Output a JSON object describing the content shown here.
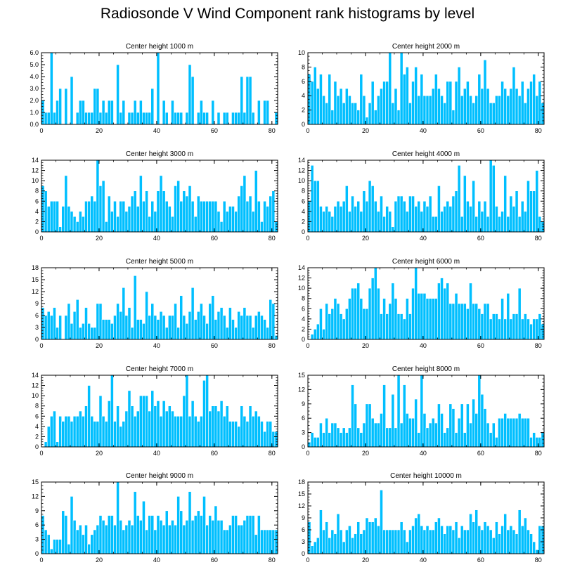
{
  "figure": {
    "title": "Radiosonde V Wind Component rank histograms by level",
    "bar_color": "#00bfff",
    "bar_edge_color": "#ffffff",
    "axis_color": "#000000"
  },
  "chart_data": [
    {
      "type": "bar",
      "title": "Center height 1000 m",
      "xlim": [
        0,
        82
      ],
      "ylim": [
        0,
        6
      ],
      "yticks": [
        0,
        1,
        2,
        3,
        4,
        5,
        6
      ],
      "ytick_labels": [
        "0.0",
        "1.0",
        "2.0",
        "3.0",
        "4.0",
        "5.0",
        "6.0"
      ],
      "xticks": [
        0,
        20,
        40,
        60,
        80
      ],
      "xtick_labels": [
        "0",
        "20",
        "40",
        "60",
        "80"
      ],
      "values": [
        2,
        1,
        1,
        6,
        1,
        2,
        3,
        0,
        3,
        0,
        4,
        0,
        1,
        2,
        2,
        1,
        1,
        1,
        3,
        3,
        1,
        2,
        1,
        2,
        2,
        0,
        5,
        1,
        2,
        0,
        1,
        1,
        2,
        1,
        2,
        1,
        1,
        1,
        3,
        0,
        6,
        0,
        2,
        1,
        0,
        2,
        1,
        1,
        1,
        0,
        1,
        5,
        4,
        0,
        1,
        2,
        1,
        1,
        0,
        2,
        0,
        1,
        0,
        1,
        1,
        0,
        1,
        1,
        1,
        4,
        1,
        4,
        4,
        1,
        0,
        2,
        0,
        2,
        2,
        0,
        0,
        1
      ]
    },
    {
      "type": "bar",
      "title": "Center height 2000 m",
      "xlim": [
        0,
        82
      ],
      "ylim": [
        0,
        10
      ],
      "yticks": [
        0,
        2,
        4,
        6,
        8,
        10
      ],
      "ytick_labels": [
        "0",
        "2",
        "4",
        "6",
        "8",
        "10"
      ],
      "xticks": [
        0,
        20,
        40,
        60,
        80
      ],
      "xtick_labels": [
        "0",
        "20",
        "40",
        "60",
        "80"
      ],
      "values": [
        7,
        6,
        8,
        5,
        7,
        4,
        3,
        7,
        2,
        6,
        4,
        5,
        3,
        5,
        4,
        3,
        3,
        2,
        7,
        4,
        1,
        3,
        6,
        2,
        4,
        5,
        6,
        6,
        10,
        3,
        5,
        2,
        10,
        7,
        8,
        3,
        6,
        8,
        4,
        7,
        4,
        4,
        4,
        5,
        7,
        5,
        4,
        3,
        6,
        6,
        2,
        6,
        8,
        4,
        5,
        6,
        4,
        3,
        4,
        7,
        5,
        9,
        5,
        3,
        3,
        4,
        4,
        6,
        5,
        4,
        5,
        8,
        5,
        4,
        6,
        3,
        5,
        6,
        7,
        4,
        6,
        3
      ]
    },
    {
      "type": "bar",
      "title": "Center height 3000 m",
      "xlim": [
        0,
        82
      ],
      "ylim": [
        0,
        14
      ],
      "yticks": [
        0,
        2,
        4,
        6,
        8,
        10,
        12,
        14
      ],
      "ytick_labels": [
        "0",
        "2",
        "4",
        "6",
        "8",
        "10",
        "12",
        "14"
      ],
      "xticks": [
        0,
        20,
        40,
        60,
        80
      ],
      "xtick_labels": [
        "0",
        "20",
        "40",
        "60",
        "80"
      ],
      "values": [
        9,
        8,
        5,
        6,
        6,
        6,
        1,
        5,
        11,
        5,
        4,
        3,
        2,
        4,
        3,
        6,
        6,
        7,
        6,
        14,
        9,
        10,
        2,
        7,
        4,
        6,
        3,
        6,
        6,
        4,
        5,
        7,
        8,
        5,
        11,
        6,
        8,
        3,
        6,
        4,
        8,
        11,
        8,
        6,
        5,
        3,
        9,
        10,
        6,
        8,
        7,
        9,
        6,
        3,
        7,
        6,
        6,
        6,
        6,
        6,
        6,
        4,
        2,
        6,
        4,
        5,
        5,
        4,
        7,
        9,
        11,
        6,
        7,
        4,
        12,
        6,
        2,
        6,
        5,
        7,
        8,
        2
      ]
    },
    {
      "type": "bar",
      "title": "Center height 4000 m",
      "xlim": [
        0,
        82
      ],
      "ylim": [
        0,
        14
      ],
      "yticks": [
        0,
        2,
        4,
        6,
        8,
        10,
        12,
        14
      ],
      "ytick_labels": [
        "0",
        "2",
        "4",
        "6",
        "8",
        "10",
        "12",
        "14"
      ],
      "xticks": [
        0,
        20,
        40,
        60,
        80
      ],
      "xtick_labels": [
        "0",
        "20",
        "40",
        "60",
        "80"
      ],
      "values": [
        6,
        13,
        10,
        10,
        5,
        4,
        5,
        4,
        3,
        5,
        6,
        5,
        6,
        9,
        4,
        7,
        5,
        6,
        4,
        8,
        6,
        10,
        9,
        6,
        4,
        7,
        3,
        5,
        4,
        1,
        6,
        7,
        7,
        6,
        4,
        7,
        7,
        5,
        6,
        4,
        6,
        5,
        7,
        3,
        3,
        9,
        4,
        5,
        6,
        5,
        7,
        8,
        13,
        3,
        11,
        6,
        5,
        10,
        3,
        6,
        4,
        6,
        3,
        14,
        13,
        5,
        3,
        4,
        11,
        3,
        7,
        5,
        8,
        3,
        6,
        4,
        10,
        8,
        8,
        12,
        3,
        2
      ]
    },
    {
      "type": "bar",
      "title": "Center height 5000 m",
      "xlim": [
        0,
        82
      ],
      "ylim": [
        0,
        18
      ],
      "yticks": [
        0,
        3,
        6,
        9,
        12,
        15,
        18
      ],
      "ytick_labels": [
        "0",
        "3",
        "6",
        "9",
        "12",
        "15",
        "18"
      ],
      "xticks": [
        0,
        20,
        40,
        60,
        80
      ],
      "xtick_labels": [
        "0",
        "20",
        "40",
        "60",
        "80"
      ],
      "values": [
        8,
        6,
        7,
        6,
        8,
        3,
        6,
        0,
        6,
        9,
        4,
        7,
        10,
        3,
        4,
        8,
        4,
        3,
        3,
        9,
        9,
        5,
        5,
        5,
        4,
        6,
        9,
        7,
        13,
        6,
        8,
        3,
        16,
        5,
        5,
        4,
        12,
        6,
        9,
        6,
        5,
        7,
        6,
        3,
        6,
        6,
        9,
        3,
        11,
        6,
        4,
        7,
        13,
        5,
        7,
        9,
        6,
        4,
        9,
        11,
        5,
        7,
        8,
        6,
        3,
        8,
        5,
        3,
        7,
        6,
        8,
        6,
        6,
        3,
        6,
        7,
        6,
        5,
        3,
        10,
        9,
        1
      ]
    },
    {
      "type": "bar",
      "title": "Center height 6000 m",
      "xlim": [
        0,
        82
      ],
      "ylim": [
        0,
        14
      ],
      "yticks": [
        0,
        2,
        4,
        6,
        8,
        10,
        12,
        14
      ],
      "ytick_labels": [
        "0",
        "2",
        "4",
        "6",
        "8",
        "10",
        "12",
        "14"
      ],
      "xticks": [
        0,
        20,
        40,
        60,
        80
      ],
      "xtick_labels": [
        "0",
        "20",
        "40",
        "60",
        "80"
      ],
      "values": [
        0,
        1,
        2,
        3,
        6,
        2,
        7,
        5,
        6,
        8,
        7,
        5,
        4,
        6,
        8,
        10,
        10,
        11,
        8,
        6,
        6,
        10,
        12,
        14,
        10,
        5,
        8,
        5,
        7,
        11,
        8,
        5,
        5,
        4,
        8,
        5,
        10,
        14,
        9,
        9,
        9,
        8,
        8,
        8,
        8,
        11,
        12,
        10,
        11,
        7,
        7,
        9,
        7,
        7,
        7,
        6,
        11,
        7,
        7,
        6,
        5,
        7,
        7,
        4,
        5,
        5,
        4,
        8,
        4,
        9,
        4,
        5,
        5,
        10,
        4,
        5,
        4,
        3,
        4,
        4,
        5,
        3
      ]
    },
    {
      "type": "bar",
      "title": "Center height 7000 m",
      "xlim": [
        0,
        82
      ],
      "ylim": [
        0,
        14
      ],
      "yticks": [
        0,
        2,
        4,
        6,
        8,
        10,
        12,
        14
      ],
      "ytick_labels": [
        "0",
        "2",
        "4",
        "6",
        "8",
        "10",
        "12",
        "14"
      ],
      "xticks": [
        0,
        20,
        40,
        60,
        80
      ],
      "xtick_labels": [
        "0",
        "20",
        "40",
        "60",
        "80"
      ],
      "values": [
        0,
        1,
        4,
        6,
        7,
        1,
        6,
        5,
        6,
        6,
        5,
        6,
        6,
        7,
        6,
        8,
        12,
        6,
        5,
        5,
        10,
        6,
        5,
        9,
        14,
        5,
        8,
        4,
        5,
        7,
        11,
        8,
        6,
        7,
        10,
        10,
        10,
        7,
        11,
        8,
        9,
        6,
        9,
        7,
        8,
        7,
        6,
        6,
        6,
        10,
        14,
        6,
        9,
        6,
        5,
        6,
        13,
        14,
        7,
        8,
        8,
        7,
        9,
        6,
        8,
        5,
        5,
        5,
        4,
        8,
        6,
        5,
        8,
        6,
        7,
        6,
        5,
        3,
        5,
        5,
        3,
        3
      ]
    },
    {
      "type": "bar",
      "title": "Center height 8000 m",
      "xlim": [
        0,
        82
      ],
      "ylim": [
        0,
        15
      ],
      "yticks": [
        0,
        3,
        6,
        9,
        12,
        15
      ],
      "ytick_labels": [
        "0",
        "3",
        "6",
        "9",
        "12",
        "15"
      ],
      "xticks": [
        0,
        20,
        40,
        60,
        80
      ],
      "xtick_labels": [
        "0",
        "20",
        "40",
        "60",
        "80"
      ],
      "values": [
        1,
        3,
        2,
        2,
        5,
        3,
        6,
        3,
        5,
        5,
        4,
        3,
        4,
        3,
        4,
        13,
        9,
        4,
        3,
        5,
        9,
        9,
        6,
        5,
        5,
        7,
        13,
        4,
        4,
        11,
        4,
        15,
        5,
        13,
        7,
        6,
        6,
        10,
        3,
        15,
        7,
        4,
        5,
        6,
        5,
        9,
        7,
        3,
        4,
        9,
        8,
        3,
        6,
        9,
        3,
        9,
        5,
        10,
        7,
        15,
        11,
        8,
        5,
        3,
        5,
        2,
        6,
        6,
        7,
        6,
        6,
        6,
        6,
        7,
        6,
        6,
        6,
        2,
        3,
        2,
        2,
        3
      ]
    },
    {
      "type": "bar",
      "title": "Center height 9000 m",
      "xlim": [
        0,
        82
      ],
      "ylim": [
        0,
        15
      ],
      "yticks": [
        0,
        3,
        6,
        9,
        12,
        15
      ],
      "ytick_labels": [
        "0",
        "3",
        "6",
        "9",
        "12",
        "15"
      ],
      "xticks": [
        0,
        20,
        40,
        60,
        80
      ],
      "xtick_labels": [
        "0",
        "20",
        "40",
        "60",
        "80"
      ],
      "values": [
        8,
        5,
        4,
        1,
        3,
        3,
        3,
        9,
        8,
        2,
        12,
        7,
        5,
        6,
        4,
        6,
        2,
        4,
        5,
        6,
        8,
        7,
        6,
        8,
        8,
        6,
        15,
        7,
        5,
        6,
        7,
        6,
        13,
        8,
        7,
        11,
        5,
        8,
        8,
        5,
        8,
        7,
        6,
        9,
        6,
        7,
        6,
        12,
        9,
        6,
        7,
        13,
        7,
        8,
        9,
        8,
        12,
        6,
        8,
        7,
        10,
        7,
        7,
        5,
        5,
        6,
        8,
        8,
        6,
        6,
        7,
        8,
        8,
        8,
        4,
        8,
        5,
        5,
        5,
        5,
        5,
        5
      ]
    },
    {
      "type": "bar",
      "title": "Center height 10000 m",
      "xlim": [
        0,
        82
      ],
      "ylim": [
        0,
        18
      ],
      "yticks": [
        0,
        3,
        6,
        9,
        12,
        15,
        18
      ],
      "ytick_labels": [
        "0",
        "3",
        "6",
        "9",
        "12",
        "15",
        "18"
      ],
      "xticks": [
        0,
        20,
        40,
        60,
        80
      ],
      "xtick_labels": [
        "0",
        "20",
        "40",
        "60",
        "80"
      ],
      "values": [
        8,
        2,
        3,
        4,
        11,
        6,
        8,
        4,
        6,
        5,
        10,
        6,
        3,
        6,
        7,
        4,
        5,
        8,
        5,
        6,
        9,
        8,
        8,
        9,
        7,
        16,
        6,
        6,
        6,
        6,
        6,
        6,
        8,
        6,
        3,
        6,
        7,
        9,
        10,
        7,
        6,
        7,
        6,
        6,
        8,
        9,
        7,
        5,
        7,
        7,
        6,
        8,
        4,
        7,
        6,
        6,
        10,
        8,
        11,
        7,
        6,
        8,
        7,
        6,
        4,
        8,
        5,
        7,
        10,
        6,
        7,
        6,
        5,
        11,
        7,
        9,
        6,
        5,
        3,
        1,
        7,
        7
      ]
    }
  ]
}
